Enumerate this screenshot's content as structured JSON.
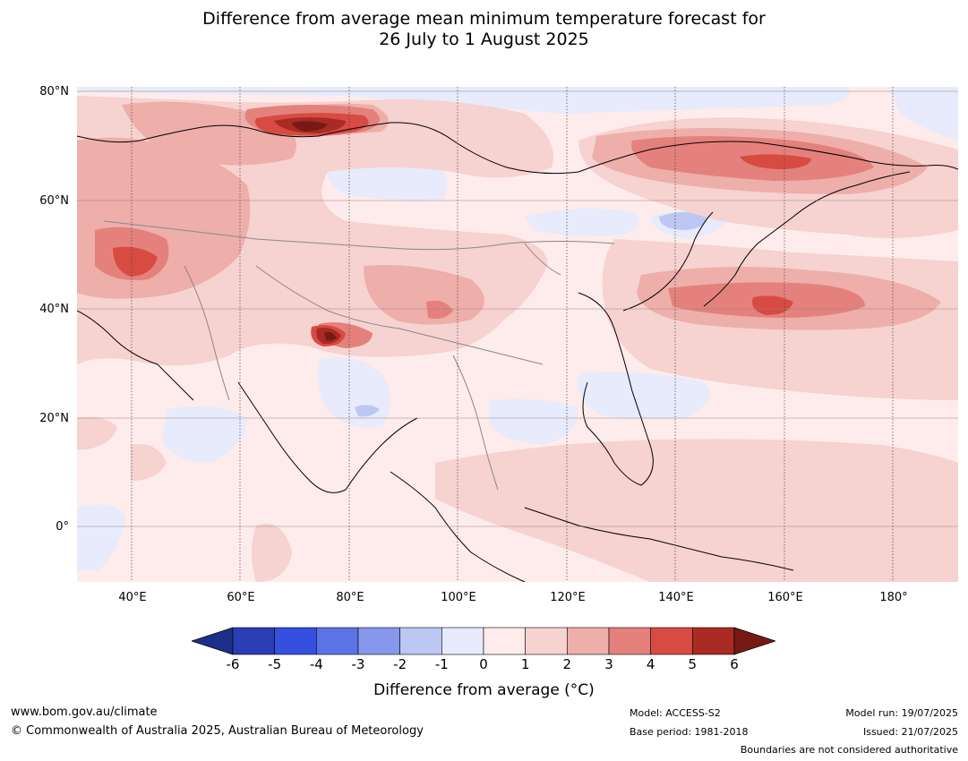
{
  "title_line1": "Difference from average mean minimum temperature forecast for",
  "title_line2": "26 July to 1 August 2025",
  "map": {
    "lat_labels": [
      "80°N",
      "60°N",
      "40°N",
      "20°N",
      "0°"
    ],
    "lon_labels": [
      "40°E",
      "60°E",
      "80°E",
      "100°E",
      "120°E",
      "140°E",
      "160°E",
      "180°"
    ],
    "extent": {
      "lon_min": 30,
      "lon_max": 192,
      "lat_min": -10,
      "lat_max": 80
    },
    "gridline_lons": [
      40,
      60,
      80,
      100,
      120,
      140,
      160,
      180
    ],
    "gridline_lats": [
      0,
      20,
      40,
      60,
      80
    ]
  },
  "colorbar": {
    "ticks": [
      "-6",
      "-5",
      "-4",
      "-3",
      "-2",
      "-1",
      "0",
      "1",
      "2",
      "3",
      "4",
      "5",
      "6"
    ],
    "colors": [
      "#1d2f8a",
      "#2a3db5",
      "#3550e0",
      "#5b73e6",
      "#8798ec",
      "#bcc7f4",
      "#e7ebfb",
      "#fdeceb",
      "#f6d2d0",
      "#eeaeaa",
      "#e4817c",
      "#d74b43",
      "#a92b23",
      "#771a16"
    ],
    "label": "Difference from average ($^\\circ$C)",
    "label_display": "Difference from average (°C)"
  },
  "footer": {
    "website": "www.bom.gov.au/climate",
    "copyright": "© Commonwealth of Australia 2025, Australian Bureau of Meteorology",
    "model": "Model: ACCESS-S2",
    "base_period": "Base period: 1981-2018",
    "model_run": "Model run: 19/07/2025",
    "issued": "Issued: 21/07/2025",
    "disclaimer": "Boundaries are not considered authoritative"
  }
}
